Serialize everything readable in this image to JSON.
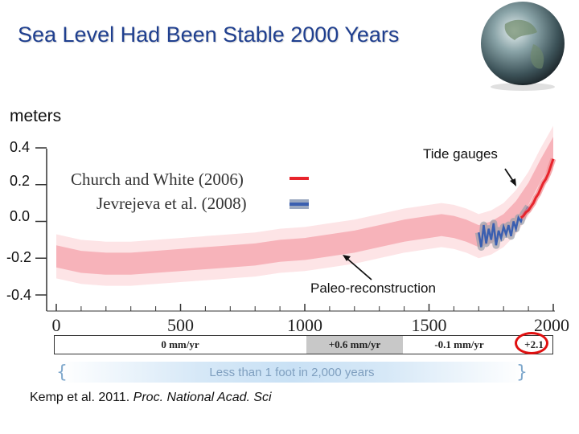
{
  "title": "Sea Level Had Been Stable 2000 Years",
  "citation": {
    "authors": "Kemp et al. 2011. ",
    "journal": "Proc. National Acad. Sci"
  },
  "rate_bar": {
    "labels": [
      "0 mm/yr",
      "+0.6 mm/yr",
      "-0.1 mm/yr",
      "+2.1"
    ]
  },
  "summary": "Less than 1 foot in 2,000 years",
  "colors": {
    "title": "#1f3f8f",
    "church_white": "#e8242c",
    "jevrejeva": "#3a5fb0",
    "band_outer": "#fde4e6",
    "band_inner": "#f7b3ba",
    "highlight": "#e01010"
  },
  "chart_data": {
    "type": "line",
    "ylabel": "meters",
    "ylim": [
      -0.45,
      0.45
    ],
    "yticks": [
      0.4,
      0.2,
      0.0,
      -0.2,
      -0.4
    ],
    "ytick_labels": [
      "0.4",
      "0.2",
      "0.0",
      "-0.2",
      "-0.4"
    ],
    "xlim": [
      0,
      2000
    ],
    "xticks": [
      0,
      500,
      1000,
      1500,
      2000
    ],
    "xtick_labels": [
      "0",
      "500",
      "1000",
      "1500",
      "2000"
    ],
    "legend": {
      "placement": "top-left",
      "entries": [
        "Church and White (2006)",
        "Jevrejeva et al. (2008)"
      ]
    },
    "annotations": [
      "Tide gauges",
      "Paleo-reconstruction"
    ],
    "series": [
      {
        "name": "Paleo-reconstruction",
        "x": [
          0,
          100,
          200,
          300,
          400,
          500,
          600,
          700,
          800,
          900,
          1000,
          1100,
          1200,
          1300,
          1400,
          1500,
          1550,
          1600,
          1650,
          1700,
          1750,
          1800,
          1850,
          1900,
          1950,
          2000
        ],
        "y": [
          -0.19,
          -0.22,
          -0.23,
          -0.23,
          -0.22,
          -0.21,
          -0.2,
          -0.19,
          -0.18,
          -0.16,
          -0.15,
          -0.13,
          -0.11,
          -0.08,
          -0.05,
          -0.03,
          -0.02,
          -0.03,
          -0.05,
          -0.08,
          -0.06,
          -0.02,
          0.05,
          0.15,
          0.28,
          0.4
        ],
        "band_inner": [
          0.06,
          0.06,
          0.06,
          0.06,
          0.06,
          0.06,
          0.06,
          0.06,
          0.06,
          0.06,
          0.06,
          0.06,
          0.06,
          0.06,
          0.06,
          0.06,
          0.06,
          0.06,
          0.06,
          0.06,
          0.06,
          0.06,
          0.06,
          0.06,
          0.06,
          0.06
        ],
        "band_outer": [
          0.12,
          0.12,
          0.12,
          0.12,
          0.12,
          0.12,
          0.12,
          0.12,
          0.12,
          0.12,
          0.12,
          0.12,
          0.12,
          0.12,
          0.12,
          0.12,
          0.12,
          0.12,
          0.12,
          0.12,
          0.12,
          0.12,
          0.12,
          0.12,
          0.12,
          0.12
        ]
      },
      {
        "name": "Jevrejeva et al. (2008)",
        "x": [
          1700,
          1710,
          1720,
          1730,
          1740,
          1750,
          1760,
          1770,
          1780,
          1790,
          1800,
          1810,
          1820,
          1830,
          1840,
          1850,
          1860,
          1870,
          1880,
          1890,
          1900
        ],
        "y": [
          -0.06,
          -0.14,
          -0.02,
          -0.12,
          -0.04,
          -0.1,
          -0.01,
          -0.13,
          -0.05,
          -0.09,
          -0.03,
          -0.07,
          -0.02,
          -0.08,
          0.0,
          -0.04,
          0.02,
          0.0,
          0.04,
          0.06,
          0.08
        ]
      },
      {
        "name": "Church and White (2006)",
        "x": [
          1870,
          1880,
          1890,
          1900,
          1910,
          1920,
          1930,
          1940,
          1950,
          1960,
          1970,
          1980,
          1990,
          2000
        ],
        "y": [
          0.02,
          0.03,
          0.05,
          0.06,
          0.08,
          0.1,
          0.13,
          0.15,
          0.18,
          0.21,
          0.23,
          0.26,
          0.3,
          0.34
        ]
      }
    ]
  }
}
